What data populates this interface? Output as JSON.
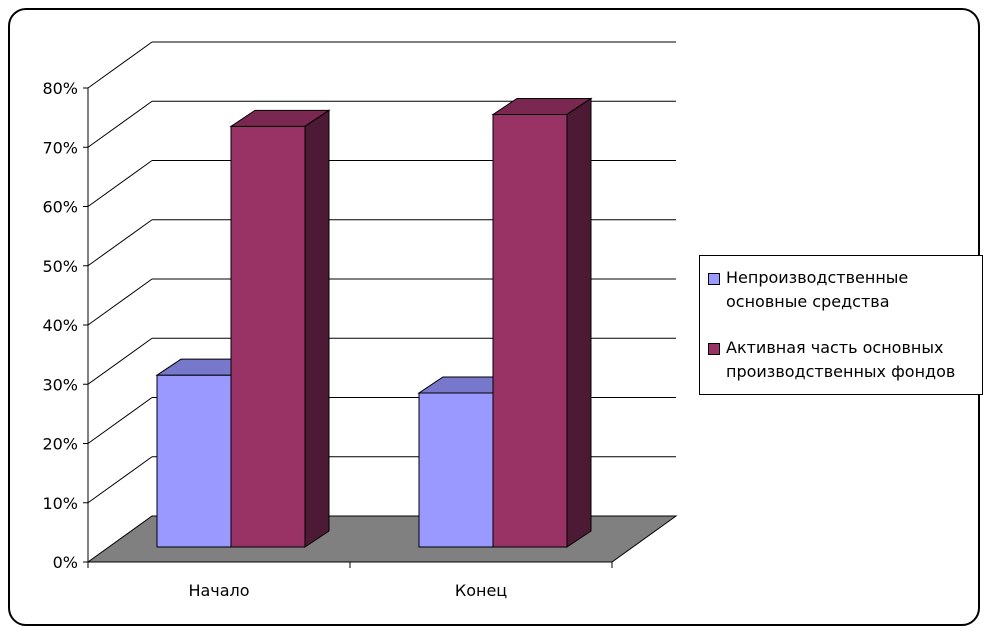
{
  "colors": {
    "series1_front": "#9999ff",
    "series1_top": "#7777cc",
    "series1_side": "#5a5aa5",
    "series2_front": "#993366",
    "series2_top": "#7a2852",
    "series2_side": "#4d1a35",
    "floor": "#808080",
    "gridline": "#000000"
  },
  "chart_data": {
    "type": "bar",
    "title": "",
    "xlabel": "",
    "ylabel": "",
    "ylim": [
      0,
      80
    ],
    "y_unit": "%",
    "y_ticks": [
      "0%",
      "10%",
      "20%",
      "30%",
      "40%",
      "50%",
      "60%",
      "70%",
      "80%"
    ],
    "categories": [
      "Начало",
      "Конец"
    ],
    "series": [
      {
        "name": "Непроизводственные основные средства",
        "values": [
          29,
          26
        ]
      },
      {
        "name": "Активная часть основных производственных фондов",
        "values": [
          71,
          73
        ]
      }
    ],
    "grid": true,
    "legend_position": "right"
  },
  "legend": {
    "items": [
      {
        "line1": "Непроизводственные",
        "line2": "основные средства"
      },
      {
        "line1": "Активная часть основных",
        "line2": "производственных фондов"
      }
    ]
  }
}
